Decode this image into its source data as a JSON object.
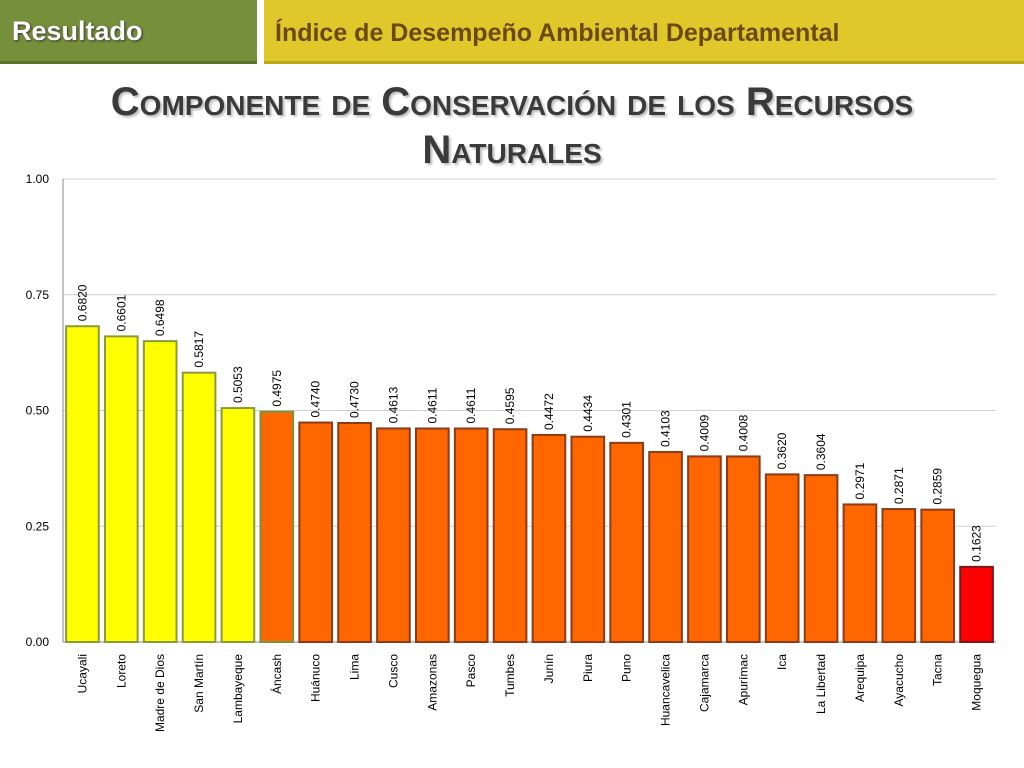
{
  "header": {
    "section_label": "Resultado",
    "slide_topic": "Índice de Desempeño Ambiental Departamental"
  },
  "title": {
    "line1": "Componente de Conservación de los Recursos",
    "line2": "Naturales"
  },
  "colors": {
    "header_green": "#768f3a",
    "header_yellow": "#e0c82a",
    "bar_yellow": "#ffff00",
    "bar_orange": "#ff6600",
    "bar_red": "#ff0000"
  },
  "chart_data": {
    "type": "bar",
    "title": "",
    "xlabel": "",
    "ylabel": "",
    "ylim": [
      0,
      1
    ],
    "y_ticks": [
      "0.00",
      "0.25",
      "0.50",
      "0.75",
      "1.00"
    ],
    "grid": true,
    "legend": "none",
    "categories": [
      "Ucayali",
      "Loreto",
      "Madre de Dios",
      "San Martín",
      "Lambayeque",
      "Áncash",
      "Huánuco",
      "Lima",
      "Cusco",
      "Amazonas",
      "Pasco",
      "Tumbes",
      "Junín",
      "Piura",
      "Puno",
      "Huancavelica",
      "Cajamarca",
      "Apurímac",
      "Ica",
      "La Libertad",
      "Arequipa",
      "Ayacucho",
      "Tacna",
      "Moquegua"
    ],
    "values": [
      0.682,
      0.6601,
      0.6498,
      0.5817,
      0.5053,
      0.4975,
      0.474,
      0.473,
      0.4613,
      0.4611,
      0.4611,
      0.4595,
      0.4472,
      0.4434,
      0.4301,
      0.4103,
      0.4009,
      0.4008,
      0.362,
      0.3604,
      0.2971,
      0.2871,
      0.2859,
      0.1623
    ],
    "value_labels": [
      "0.6820",
      "0.6601",
      "0.6498",
      "0.5817",
      "0.5053",
      "0.4975",
      "0.4740",
      "0.4730",
      "0.4613",
      "0.4611",
      "0.4611",
      "0.4595",
      "0.4472",
      "0.4434",
      "0.4301",
      "0.4103",
      "0.4009",
      "0.4008",
      "0.3620",
      "0.3604",
      "0.2971",
      "0.2871",
      "0.2859",
      "0.1623"
    ],
    "bar_colors": [
      "yellow",
      "yellow",
      "yellow",
      "yellow",
      "yellow",
      "orange",
      "orange",
      "orange",
      "orange",
      "orange",
      "orange",
      "orange",
      "orange",
      "orange",
      "orange",
      "orange",
      "orange",
      "orange",
      "orange",
      "orange",
      "orange",
      "orange",
      "orange",
      "red"
    ]
  }
}
